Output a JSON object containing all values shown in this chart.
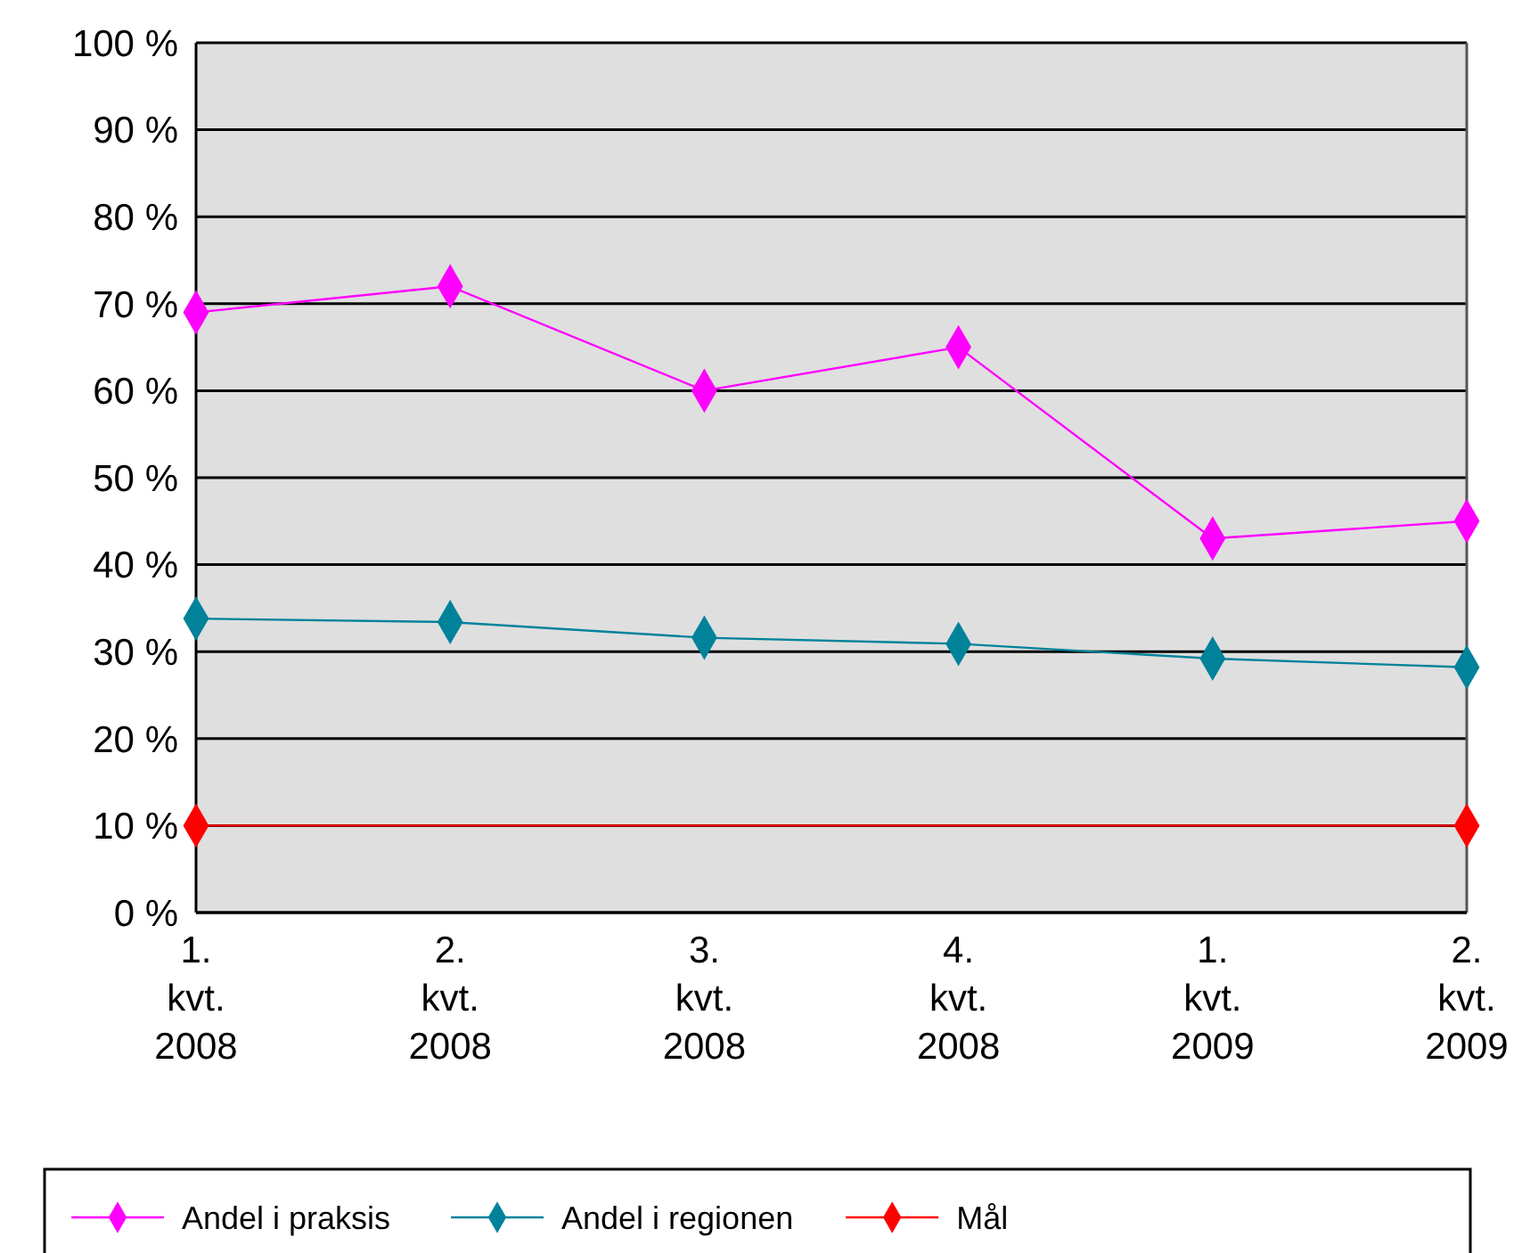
{
  "chart_data": {
    "type": "line",
    "categories": [
      "1. kvt. 2008",
      "2. kvt. 2008",
      "3. kvt. 2008",
      "4. kvt. 2008",
      "1. kvt. 2009",
      "2. kvt. 2009"
    ],
    "series": [
      {
        "name": "Andel i praksis",
        "color": "#ff00ff",
        "values": [
          69,
          72,
          60,
          65,
          43,
          45
        ]
      },
      {
        "name": "Andel i regionen",
        "color": "#00829a",
        "values": [
          33.8,
          33.4,
          31.6,
          30.9,
          29.2,
          28.2
        ]
      },
      {
        "name": "Mål",
        "color": "#ff0000",
        "x": [
          "1. kvt. 2008",
          "2. kvt. 2009"
        ],
        "values": [
          10,
          10
        ]
      }
    ],
    "ylim": [
      0,
      100
    ],
    "yticks": [
      {
        "value": 0,
        "label": "0 %"
      },
      {
        "value": 10,
        "label": "10 %"
      },
      {
        "value": 20,
        "label": "20 %"
      },
      {
        "value": 30,
        "label": "30 %"
      },
      {
        "value": 40,
        "label": "40 %"
      },
      {
        "value": 50,
        "label": "50 %"
      },
      {
        "value": 60,
        "label": "60 %"
      },
      {
        "value": 70,
        "label": "70 %"
      },
      {
        "value": 80,
        "label": "80 %"
      },
      {
        "value": 90,
        "label": "90 %"
      },
      {
        "value": 100,
        "label": "100 %"
      }
    ],
    "grid": "y",
    "legend": "bottom",
    "marker": "diamond",
    "line_style": "solid"
  }
}
